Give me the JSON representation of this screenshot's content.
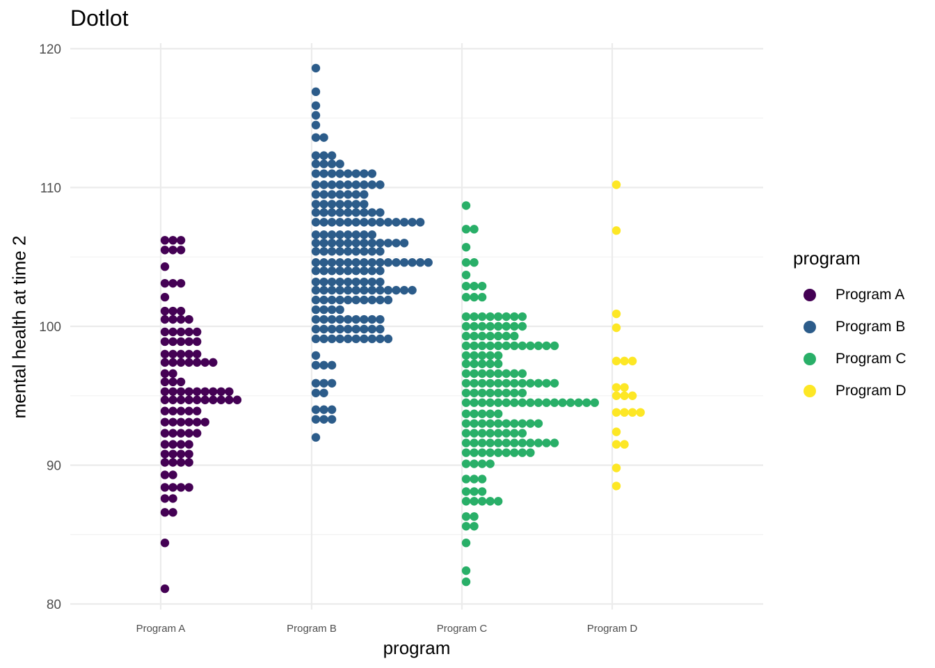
{
  "chart_data": {
    "type": "scatter",
    "subtype": "dotplot",
    "title": "Dotlot",
    "xlabel": "program",
    "ylabel": "mental health at time 2",
    "categories": [
      "Program A",
      "Program B",
      "Program C",
      "Program D"
    ],
    "ylim": [
      79.6,
      120.4
    ],
    "yticks": [
      80,
      90,
      100,
      110,
      120
    ],
    "grid": true,
    "legend": {
      "title": "program",
      "position": "right"
    },
    "colors": {
      "Program A": "#440154",
      "Program B": "#2c5c8a",
      "Program C": "#29af68",
      "Program D": "#fde725"
    },
    "bins": [
      {
        "name": "Program A",
        "stacks": [
          [
            106.2,
            3
          ],
          [
            105.5,
            3
          ],
          [
            104.3,
            1
          ],
          [
            103.1,
            3
          ],
          [
            102.1,
            1
          ],
          [
            101.1,
            3
          ],
          [
            100.5,
            4
          ],
          [
            99.6,
            5
          ],
          [
            98.9,
            5
          ],
          [
            98.0,
            5
          ],
          [
            97.4,
            7
          ],
          [
            96.6,
            2
          ],
          [
            96.0,
            3
          ],
          [
            95.3,
            9
          ],
          [
            94.7,
            10
          ],
          [
            93.9,
            5
          ],
          [
            93.1,
            6
          ],
          [
            92.3,
            5
          ],
          [
            91.5,
            4
          ],
          [
            90.8,
            4
          ],
          [
            90.2,
            4
          ],
          [
            89.3,
            2
          ],
          [
            88.4,
            4
          ],
          [
            87.6,
            2
          ],
          [
            86.6,
            2
          ],
          [
            84.4,
            1
          ],
          [
            81.1,
            1
          ]
        ]
      },
      {
        "name": "Program B",
        "stacks": [
          [
            118.6,
            1
          ],
          [
            116.9,
            1
          ],
          [
            115.9,
            1
          ],
          [
            115.2,
            1
          ],
          [
            114.5,
            1
          ],
          [
            113.6,
            2
          ],
          [
            112.3,
            3
          ],
          [
            111.7,
            4
          ],
          [
            111.0,
            8
          ],
          [
            110.2,
            9
          ],
          [
            109.5,
            7
          ],
          [
            108.8,
            7
          ],
          [
            108.2,
            9
          ],
          [
            107.5,
            14
          ],
          [
            106.6,
            8
          ],
          [
            106.0,
            12
          ],
          [
            105.4,
            9
          ],
          [
            104.6,
            15
          ],
          [
            104.0,
            9
          ],
          [
            103.2,
            9
          ],
          [
            102.6,
            13
          ],
          [
            101.9,
            10
          ],
          [
            101.2,
            4
          ],
          [
            100.5,
            9
          ],
          [
            99.8,
            9
          ],
          [
            99.1,
            10
          ],
          [
            97.9,
            1
          ],
          [
            97.2,
            3
          ],
          [
            95.9,
            3
          ],
          [
            95.2,
            2
          ],
          [
            94.0,
            3
          ],
          [
            93.3,
            3
          ],
          [
            92.0,
            1
          ]
        ]
      },
      {
        "name": "Program C",
        "stacks": [
          [
            108.7,
            1
          ],
          [
            107.0,
            2
          ],
          [
            105.7,
            1
          ],
          [
            104.6,
            2
          ],
          [
            103.7,
            1
          ],
          [
            102.9,
            3
          ],
          [
            102.1,
            3
          ],
          [
            100.7,
            8
          ],
          [
            100.0,
            8
          ],
          [
            99.3,
            7
          ],
          [
            98.6,
            12
          ],
          [
            97.9,
            5
          ],
          [
            97.3,
            5
          ],
          [
            96.6,
            8
          ],
          [
            95.9,
            12
          ],
          [
            95.2,
            8
          ],
          [
            94.5,
            17
          ],
          [
            93.7,
            5
          ],
          [
            93.0,
            10
          ],
          [
            92.3,
            8
          ],
          [
            91.6,
            12
          ],
          [
            90.9,
            9
          ],
          [
            90.1,
            4
          ],
          [
            89.0,
            3
          ],
          [
            88.1,
            3
          ],
          [
            87.4,
            5
          ],
          [
            86.3,
            2
          ],
          [
            85.6,
            2
          ],
          [
            84.4,
            1
          ],
          [
            82.4,
            1
          ],
          [
            81.6,
            1
          ]
        ]
      },
      {
        "name": "Program D",
        "stacks": [
          [
            110.2,
            1
          ],
          [
            106.9,
            1
          ],
          [
            100.9,
            1
          ],
          [
            99.9,
            1
          ],
          [
            97.5,
            3
          ],
          [
            95.6,
            2
          ],
          [
            95.0,
            3
          ],
          [
            93.8,
            4
          ],
          [
            92.4,
            1
          ],
          [
            91.5,
            2
          ],
          [
            89.8,
            1
          ],
          [
            88.5,
            1
          ]
        ]
      }
    ]
  }
}
